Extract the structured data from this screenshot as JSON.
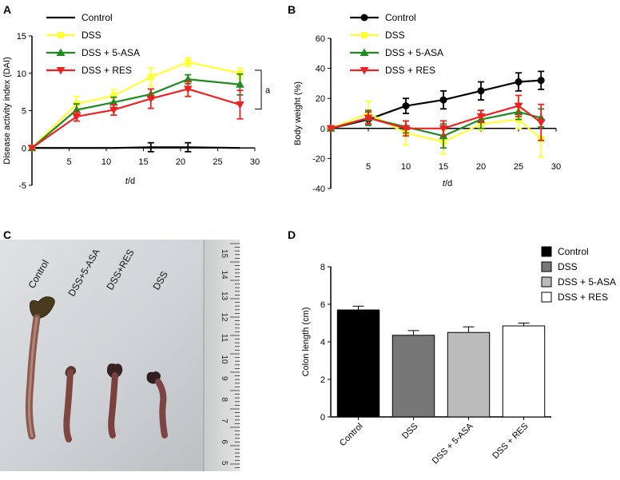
{
  "panels": {
    "a": {
      "letter": "A"
    },
    "b": {
      "letter": "B"
    },
    "c": {
      "letter": "C"
    },
    "d": {
      "letter": "D"
    }
  },
  "colors": {
    "Control": "#000000",
    "DSS": "#ffff33",
    "DSS + 5-ASA": "#1f8a1f",
    "DSS + RES": "#ee2222",
    "d_Control": "#000000",
    "d_DSS": "#777777",
    "d_DSS + 5-ASA": "#bbbbbb",
    "d_DSS + RES": "#ffffff"
  },
  "photo": {
    "labels": [
      "Control",
      "DSS+5-ASA",
      "DSS+RES",
      "DSS"
    ],
    "ruler_numbers": [
      "15",
      "14",
      "13",
      "12",
      "11",
      "10",
      "9",
      "8",
      "7",
      "6",
      "5"
    ]
  },
  "chart_data": [
    {
      "id": "A",
      "type": "line",
      "title": "",
      "xlabel": "t/d",
      "xlabel_italic": "t",
      "xlabel_rest": "/d",
      "ylabel": "Disease activity index (DAI)",
      "xlim": [
        0,
        30
      ],
      "ylim": [
        -5,
        15
      ],
      "xticks": [
        5,
        10,
        15,
        20,
        25,
        30
      ],
      "yticks": [
        -5,
        0,
        5,
        10,
        15
      ],
      "annotation": "a",
      "legend": [
        "Control",
        "DSS",
        "DSS + 5-ASA",
        "DSS + RES"
      ],
      "series": [
        {
          "name": "Control",
          "marker": "line",
          "x": [
            0,
            6,
            11,
            16,
            21,
            28
          ],
          "y": [
            0,
            0,
            0,
            0.1,
            0.1,
            0
          ],
          "err": [
            0,
            0,
            0,
            0.6,
            0.6,
            0
          ]
        },
        {
          "name": "DSS",
          "marker": "square",
          "x": [
            0,
            6,
            11,
            16,
            21,
            28
          ],
          "y": [
            0,
            5.9,
            7.0,
            9.5,
            11.5,
            10.0
          ],
          "err": [
            0,
            1.0,
            0.8,
            1.2,
            0.6,
            0.7
          ]
        },
        {
          "name": "DSS + 5-ASA",
          "marker": "triangle",
          "x": [
            0,
            6,
            11,
            16,
            21,
            28
          ],
          "y": [
            0,
            5.1,
            6.1,
            7.2,
            9.2,
            8.5
          ],
          "err": [
            0,
            0.8,
            0.7,
            0.7,
            0.6,
            1.4
          ]
        },
        {
          "name": "DSS + RES",
          "marker": "triangle-down",
          "x": [
            0,
            6,
            11,
            16,
            21,
            28
          ],
          "y": [
            0,
            4.2,
            5.1,
            6.6,
            7.9,
            5.8
          ],
          "err": [
            0,
            0.6,
            0.7,
            1.3,
            1.0,
            1.9
          ]
        }
      ]
    },
    {
      "id": "B",
      "type": "line",
      "title": "",
      "xlabel": "t/d",
      "xlabel_italic": "t",
      "xlabel_rest": "/d",
      "ylabel": "Body weight (%)",
      "xlim": [
        0,
        30
      ],
      "ylim": [
        -40,
        60
      ],
      "xticks": [
        5,
        10,
        15,
        20,
        25,
        30
      ],
      "yticks": [
        -40,
        -20,
        0,
        20,
        40,
        60
      ],
      "legend": [
        "Control",
        "DSS",
        "DSS + 5-ASA",
        "DSS + RES"
      ],
      "series": [
        {
          "name": "Control",
          "marker": "circle",
          "x": [
            0,
            5,
            10,
            15,
            20,
            25,
            28
          ],
          "y": [
            0,
            6,
            15,
            19,
            25,
            31,
            32
          ],
          "err": [
            0,
            3,
            5,
            6,
            6,
            6,
            6
          ]
        },
        {
          "name": "DSS",
          "marker": "square",
          "x": [
            0,
            5,
            10,
            15,
            20,
            25,
            28
          ],
          "y": [
            0,
            10,
            -3,
            -9,
            3,
            6,
            -7
          ],
          "err": [
            0,
            8,
            8,
            8,
            4,
            6,
            12
          ]
        },
        {
          "name": "DSS + 5-ASA",
          "marker": "triangle",
          "x": [
            0,
            5,
            10,
            15,
            20,
            25,
            28
          ],
          "y": [
            0,
            7,
            1,
            -5,
            6,
            11,
            7
          ],
          "err": [
            0,
            5,
            4,
            8,
            6,
            5,
            6
          ]
        },
        {
          "name": "DSS + RES",
          "marker": "triangle-down",
          "x": [
            0,
            5,
            10,
            15,
            20,
            25,
            28
          ],
          "y": [
            0,
            7,
            0,
            0,
            8,
            15,
            4
          ],
          "err": [
            0,
            4,
            5,
            5,
            4,
            7,
            12
          ]
        }
      ]
    },
    {
      "id": "D",
      "type": "bar",
      "title": "",
      "xlabel": "",
      "ylabel": "Colon length (cm)",
      "ylim": [
        0,
        8
      ],
      "yticks": [
        0,
        2,
        4,
        6,
        8
      ],
      "categories": [
        "Control",
        "DSS",
        "DSS + 5-ASA",
        "DSS + RES"
      ],
      "values": [
        5.7,
        4.35,
        4.5,
        4.85
      ],
      "err": [
        0.2,
        0.25,
        0.3,
        0.15
      ],
      "legend": [
        "Control",
        "DSS",
        "DSS + 5-ASA",
        "DSS + RES"
      ]
    }
  ]
}
